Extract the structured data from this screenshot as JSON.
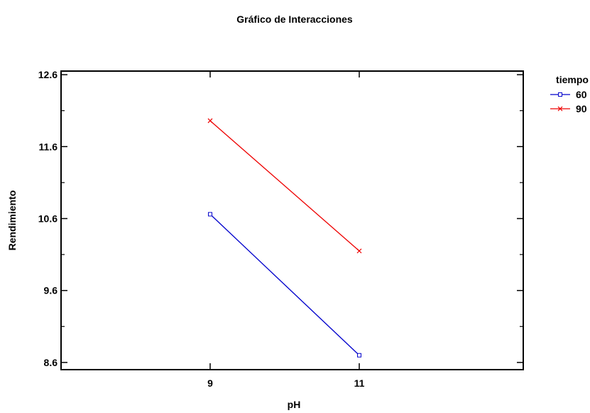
{
  "chart_data": {
    "type": "line",
    "title": "Gráfico de Interacciones",
    "xlabel": "pH",
    "ylabel": "Rendimiento",
    "categories": [
      "9",
      "11"
    ],
    "x": [
      9,
      11
    ],
    "xlim": [
      7,
      13.2
    ],
    "ylim": [
      8.5,
      12.65
    ],
    "yticks": [
      "8.6",
      "9.6",
      "10.6",
      "11.6",
      "12.6"
    ],
    "grid": false,
    "legend": {
      "title": "tiempo",
      "position": "top-right"
    },
    "series": [
      {
        "name": "60",
        "values": [
          10.66,
          8.7
        ],
        "color": "#0000cc",
        "marker": "square"
      },
      {
        "name": "90",
        "values": [
          11.96,
          10.15
        ],
        "color": "#ee0000",
        "marker": "x"
      }
    ]
  }
}
